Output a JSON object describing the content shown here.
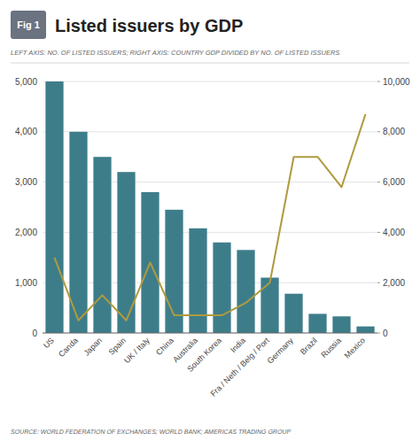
{
  "chart_data": {
    "type": "bar",
    "title": "Listed issuers by GDP",
    "subtitle": "LEFT AXIS: NO. OF LISTED ISSUERS; RIGHT AXIS: COUNTRY GDP DIVIDED BY NO. OF LISTED ISSUERS",
    "annotations": [
      "Fig 1",
      "SOURCE: WORLD FEDERATION OF EXCHANGES; WORLD BANK; AMERICAS TRADING GROUP"
    ],
    "categories": [
      "US",
      "Canda",
      "Japan",
      "Spain",
      "UK / Italy",
      "China",
      "Australia",
      "South Korea",
      "India",
      "Fra / Neth / Belg / Port",
      "Germany",
      "Brazil",
      "Russia",
      "Mexico"
    ],
    "series": [
      {
        "type": "bar",
        "color": "#3d7d8a",
        "values": [
          5000,
          4000,
          3500,
          3200,
          2800,
          2450,
          2080,
          1800,
          1650,
          1100,
          780,
          380,
          330,
          130
        ]
      },
      {
        "type": "line",
        "color": "#b09a3e",
        "axis": "y2",
        "values": [
          3000,
          500,
          1500,
          500,
          2800,
          700,
          700,
          700,
          1200,
          2000,
          7000,
          7000,
          5800,
          8700
        ]
      }
    ],
    "ylim": [
      0,
      5000
    ],
    "yticks": [
      0,
      {
        "value": 1000,
        "label": "1,000"
      },
      {
        "value": 2000,
        "label": "2,000"
      },
      {
        "value": 3000,
        "label": "3,000"
      },
      {
        "value": 4000,
        "label": "4,000"
      },
      {
        "value": 5000,
        "label": "5,000"
      }
    ],
    "y2lim": [
      0,
      10000
    ],
    "y2ticks": [
      0,
      {
        "value": 2000,
        "label": "2,000"
      },
      {
        "value": 4000,
        "label": "4,000"
      },
      {
        "value": 6000,
        "label": "6,000"
      },
      {
        "value": 8000,
        "label": "8,000"
      },
      {
        "value": 10000,
        "label": "10,000"
      }
    ],
    "grid": true
  }
}
